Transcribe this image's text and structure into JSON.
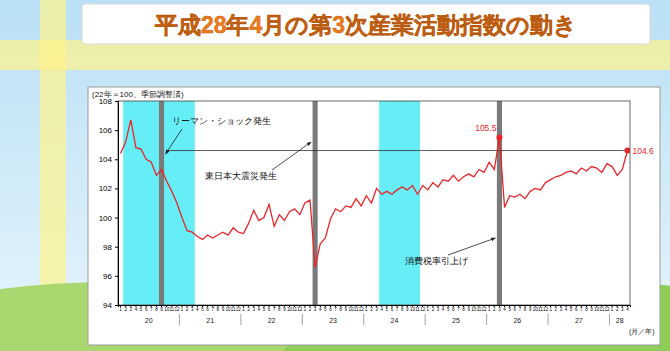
{
  "chart_data": {
    "type": "line",
    "title": "平成28年4月の第3次産業活動指数の動き",
    "y_label": "(22年＝100、季節調整済)",
    "x_label": "(月／年)",
    "categories": [
      "1",
      "2",
      "3",
      "4",
      "5",
      "6",
      "7",
      "8",
      "9",
      "10",
      "11",
      "12",
      "1",
      "2",
      "3",
      "4",
      "5",
      "6",
      "7",
      "8",
      "9",
      "10",
      "11",
      "12",
      "1",
      "2",
      "3",
      "4",
      "5",
      "6",
      "7",
      "8",
      "9",
      "10",
      "11",
      "12",
      "1",
      "2",
      "3",
      "4",
      "5",
      "6",
      "7",
      "8",
      "9",
      "10",
      "11",
      "12",
      "1",
      "2",
      "3",
      "4",
      "5",
      "6",
      "7",
      "8",
      "9",
      "10",
      "11",
      "12",
      "1",
      "2",
      "3",
      "4",
      "5",
      "6",
      "7",
      "8",
      "9",
      "10",
      "11",
      "12",
      "1",
      "2",
      "3",
      "4",
      "5",
      "6",
      "7",
      "8",
      "9",
      "10",
      "11",
      "12",
      "1",
      "2",
      "3",
      "4",
      "5",
      "6",
      "7",
      "8",
      "9",
      "10",
      "11",
      "12",
      "1",
      "2",
      "3",
      "4"
    ],
    "x_groups": [
      {
        "label": "20",
        "from": 0,
        "to": 11
      },
      {
        "label": "21",
        "from": 12,
        "to": 23
      },
      {
        "label": "22",
        "from": 24,
        "to": 35
      },
      {
        "label": "23",
        "from": 36,
        "to": 47
      },
      {
        "label": "24",
        "from": 48,
        "to": 59
      },
      {
        "label": "25",
        "from": 60,
        "to": 71
      },
      {
        "label": "26",
        "from": 72,
        "to": 83
      },
      {
        "label": "27",
        "from": 84,
        "to": 95
      },
      {
        "label": "28",
        "from": 96,
        "to": 99
      }
    ],
    "series": [
      {
        "color": "#e8262a",
        "values": [
          104.4,
          105.2,
          106.7,
          104.8,
          104.7,
          104.0,
          103.8,
          102.9,
          103.3,
          102.5,
          101.8,
          101.0,
          100.0,
          99.1,
          99.0,
          98.7,
          98.5,
          98.8,
          98.6,
          98.8,
          99.0,
          98.8,
          99.3,
          99.0,
          98.9,
          99.6,
          100.5,
          99.8,
          100.0,
          100.9,
          99.4,
          100.2,
          99.8,
          100.4,
          100.6,
          100.2,
          101.0,
          101.2,
          96.6,
          98.2,
          98.6,
          99.9,
          100.6,
          100.4,
          100.8,
          100.7,
          101.3,
          100.8,
          101.5,
          101.0,
          102.0,
          101.6,
          101.8,
          101.6,
          101.9,
          102.1,
          101.9,
          102.2,
          101.6,
          102.2,
          101.9,
          102.4,
          102.1,
          102.6,
          102.5,
          102.9,
          102.5,
          102.8,
          103.0,
          102.8,
          103.3,
          103.1,
          103.8,
          103.3,
          105.5,
          100.7,
          101.5,
          101.4,
          101.6,
          101.3,
          101.8,
          102.0,
          101.9,
          102.4,
          102.6,
          102.8,
          102.9,
          103.1,
          103.2,
          103.0,
          103.4,
          103.2,
          103.5,
          103.4,
          103.1,
          103.7,
          103.5,
          102.9,
          103.3,
          104.6
        ],
        "value_labels": [
          null,
          null,
          null,
          null,
          null,
          null,
          null,
          null,
          null,
          null,
          null,
          null,
          null,
          null,
          null,
          null,
          null,
          null,
          null,
          null,
          null,
          null,
          null,
          null,
          null,
          null,
          null,
          null,
          null,
          null,
          null,
          null,
          null,
          null,
          null,
          null,
          null,
          null,
          null,
          null,
          null,
          null,
          null,
          null,
          null,
          null,
          null,
          null,
          null,
          null,
          null,
          null,
          null,
          null,
          null,
          null,
          null,
          null,
          null,
          null,
          null,
          null,
          null,
          null,
          null,
          null,
          null,
          null,
          null,
          null,
          null,
          null,
          null,
          null,
          "105.5",
          null,
          null,
          null,
          null,
          null,
          null,
          null,
          null,
          null,
          null,
          null,
          null,
          null,
          null,
          null,
          null,
          null,
          null,
          null,
          null,
          null,
          null,
          null,
          null,
          "104.6"
        ]
      }
    ],
    "events": [
      {
        "at": 8,
        "label": "リーマン・ショック発生"
      },
      {
        "at": 38,
        "label": "東日本大震災発生"
      },
      {
        "at": 74,
        "label": "消費税率引上げ"
      }
    ],
    "shaded": [
      {
        "from": 1,
        "to": 14
      },
      {
        "from": 51,
        "to": 58
      }
    ],
    "reference_line": {
      "value": 104.6,
      "from": 9
    },
    "ylim": [
      94,
      108
    ],
    "yticks": [
      94,
      96,
      98,
      100,
      102,
      104,
      106,
      108
    ],
    "grid": false
  }
}
